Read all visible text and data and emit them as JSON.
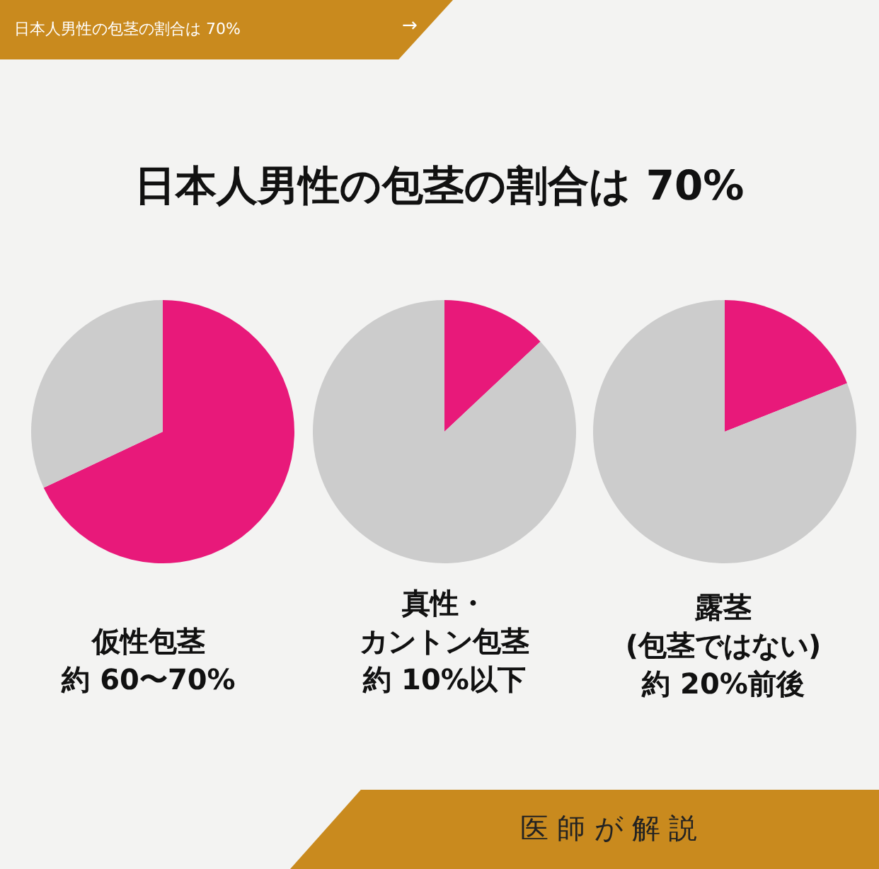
{
  "chart_data": [
    {
      "type": "pie",
      "title": "仮性包茎",
      "annotations": [
        "約 60〜70%"
      ],
      "categories": [
        null,
        null
      ],
      "values": [
        68,
        32
      ],
      "colors": [
        "#e8197a",
        "#cccccc"
      ]
    },
    {
      "type": "pie",
      "title": "真性・",
      "annotations": [
        "カントン包茎",
        "約 10%以下"
      ],
      "categories": [
        null,
        null
      ],
      "values": [
        13,
        87
      ],
      "colors": [
        "#e8197a",
        "#cccccc"
      ]
    },
    {
      "type": "pie",
      "title": "露茎",
      "annotations": [
        "(包茎ではない)",
        "約 20%前後"
      ],
      "categories": [
        null,
        null
      ],
      "values": [
        19,
        81
      ],
      "colors": [
        "#e8197a",
        "#cccccc"
      ]
    },
    {
      "type": "other",
      "title": "日本人男性の包茎の割合は 70%",
      "annotations": [
        "日本人男性の包茎の割合は 70%",
        "→",
        "医 師 が 解 説"
      ]
    }
  ]
}
